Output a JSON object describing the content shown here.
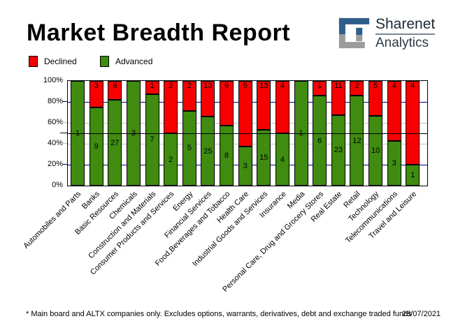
{
  "title": "Market Breadth Report",
  "logo": {
    "line1": "Sharenet",
    "line2": "Analytics",
    "blue": "#2e5e8c",
    "gray": "#9c9c9c"
  },
  "legend": [
    {
      "label": "Declined",
      "color": "#f80000"
    },
    {
      "label": "Advanced",
      "color": "#3f8c10"
    }
  ],
  "footer": {
    "note": "* Main board and ALTX companies only. Excludes options, warrants, derivatives, debt and exchange traded funds",
    "date": "28/07/2021"
  },
  "chart_data": {
    "type": "bar",
    "stacked": true,
    "title": "Market Breadth Report",
    "categories": [
      "Automobiles and Parts",
      "Banks",
      "Basic Resources",
      "Chemicals",
      "Construction and Materials",
      "Consumer Products and Services",
      "Energy",
      "Financial Services",
      "Food,Beverages and Tobacco",
      "Health Care",
      "Industrial Goods and Services",
      "Insurance",
      "Media",
      "Personal Care, Drug and Grocery Stores",
      "Real Estate",
      "Retail",
      "Technology",
      "Telecommunications",
      "Travel and Leisure"
    ],
    "series": [
      {
        "name": "Advanced",
        "color": "#3f8c10",
        "values": [
          1,
          9,
          27,
          3,
          7,
          2,
          5,
          25,
          8,
          3,
          15,
          4,
          1,
          6,
          23,
          12,
          10,
          3,
          1
        ]
      },
      {
        "name": "Declined",
        "color": "#f80000",
        "values": [
          0,
          3,
          6,
          0,
          1,
          2,
          2,
          13,
          6,
          5,
          13,
          4,
          0,
          1,
          11,
          2,
          5,
          4,
          4
        ]
      }
    ],
    "value_axis_note": "bars stacked to 100%, labels show company counts",
    "y_ticks": [
      {
        "label": "100%",
        "pct": 100
      },
      {
        "label": "80%",
        "pct": 80
      },
      {
        "label": "60%",
        "pct": 60
      },
      {
        "label": "40%",
        "pct": 40
      },
      {
        "label": "20%",
        "pct": 20
      },
      {
        "label": "0%",
        "pct": 0
      }
    ],
    "grid_lines": [
      {
        "pct": 80,
        "color": "#000080",
        "over": false
      },
      {
        "pct": 60,
        "color": "#c0c0c0",
        "over": false
      },
      {
        "pct": 50,
        "color": "#000000",
        "over": true
      },
      {
        "pct": 40,
        "color": "#c0c0c0",
        "over": false
      },
      {
        "pct": 20,
        "color": "#000080",
        "over": false
      }
    ],
    "ylim": [
      0,
      100
    ],
    "legend_position": "top-left",
    "grid": true
  }
}
